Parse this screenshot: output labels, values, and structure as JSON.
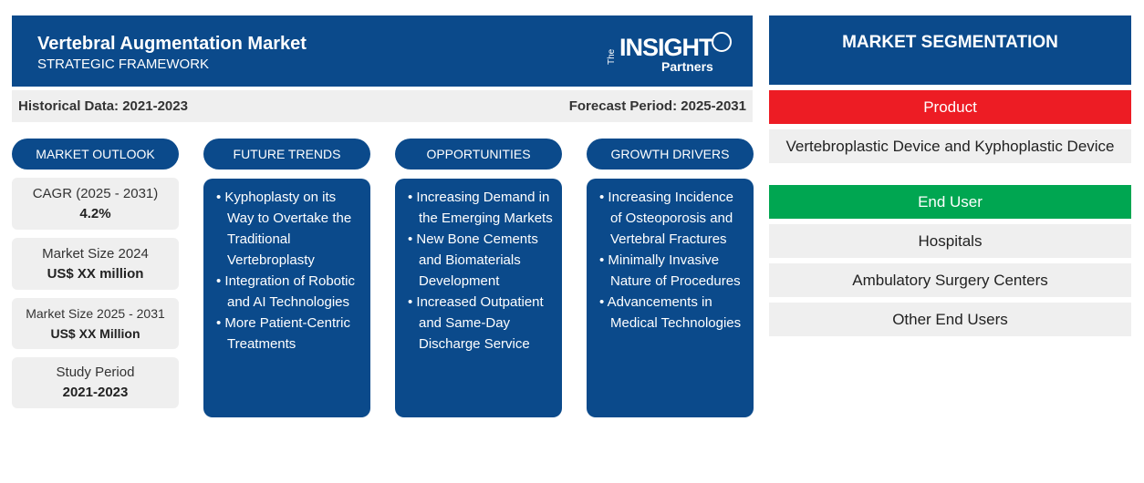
{
  "header": {
    "title": "Vertebral Augmentation Market",
    "subtitle": "STRATEGIC FRAMEWORK",
    "logo": {
      "the": "The",
      "insight": "INSIGHT",
      "partners": "Partners"
    }
  },
  "period_bar": {
    "historical": "Historical Data: 2021-2023",
    "forecast": "Forecast Period: 2025-2031"
  },
  "market_outlook": {
    "title": "MARKET OUTLOOK",
    "stats": [
      {
        "label": "CAGR (2025 - 2031)",
        "value": "4.2%"
      },
      {
        "label": "Market Size 2024",
        "value": "US$ XX million"
      },
      {
        "label": "Market Size 2025 - 2031",
        "value": "US$ XX Million"
      },
      {
        "label": "Study Period",
        "value": "2021-2023"
      }
    ]
  },
  "columns": [
    {
      "title": "FUTURE TRENDS",
      "items": [
        "Kyphoplasty on its Way to Overtake the Traditional Vertebroplasty",
        "Integration of Robotic and AI Technologies",
        "More Patient-Centric Treatments"
      ]
    },
    {
      "title": "OPPORTUNITIES",
      "items": [
        "Increasing Demand in the Emerging Markets",
        "New Bone Cements and Biomaterials Development",
        "Increased Outpatient and Same-Day Discharge Service"
      ]
    },
    {
      "title": "GROWTH DRIVERS",
      "items": [
        "Increasing Incidence of Osteoporosis and Vertebral Fractures",
        "Minimally Invasive Nature of Procedures",
        "Advancements in Medical Technologies"
      ]
    }
  ],
  "segmentation": {
    "title": "MARKET SEGMENTATION",
    "groups": [
      {
        "name": "Product",
        "items": [
          "Vertebroplastic Device and Kyphoplastic Device"
        ]
      },
      {
        "name": "End User",
        "items": [
          "Hospitals",
          "Ambulatory Surgery Centers",
          "Other End Users"
        ]
      }
    ]
  }
}
